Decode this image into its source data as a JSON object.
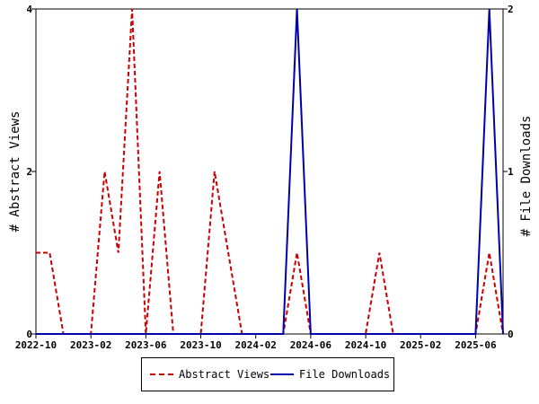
{
  "chart_data": {
    "type": "line",
    "categories": [
      "2022-10",
      "2022-11",
      "2022-12",
      "2023-01",
      "2023-02",
      "2023-03",
      "2023-04",
      "2023-05",
      "2023-06",
      "2023-07",
      "2023-08",
      "2023-09",
      "2023-10",
      "2023-11",
      "2023-12",
      "2024-01",
      "2024-02",
      "2024-03",
      "2024-04",
      "2024-05",
      "2024-06",
      "2024-07",
      "2024-08",
      "2024-09",
      "2024-10",
      "2024-11",
      "2024-12",
      "2025-01",
      "2025-02",
      "2025-03",
      "2025-04",
      "2025-05",
      "2025-06",
      "2025-07",
      "2025-08"
    ],
    "x_tick_labels": [
      "2022-10",
      "2023-02",
      "2023-06",
      "2023-10",
      "2024-02",
      "2024-06",
      "2024-10",
      "2025-02",
      "2025-06"
    ],
    "series": [
      {
        "name": "Abstract Views",
        "axis": "left",
        "color": "#cc0000",
        "dash": "dashed",
        "values": [
          1,
          1,
          0,
          0,
          0,
          2,
          1,
          4,
          0,
          2,
          0,
          0,
          0,
          2,
          1,
          0,
          0,
          0,
          0,
          1,
          0,
          0,
          0,
          0,
          0,
          1,
          0,
          0,
          0,
          0,
          0,
          0,
          0,
          1,
          0
        ]
      },
      {
        "name": "File Downloads",
        "axis": "right",
        "color": "#0000aa",
        "dash": "solid",
        "values": [
          0,
          0,
          0,
          0,
          0,
          0,
          0,
          0,
          0,
          0,
          0,
          0,
          0,
          0,
          0,
          0,
          0,
          0,
          0,
          2,
          0,
          0,
          0,
          0,
          0,
          0,
          0,
          0,
          0,
          0,
          0,
          0,
          0,
          2,
          0
        ]
      }
    ],
    "ylabel_left": "# Abstract Views",
    "ylabel_right": "# File Downloads",
    "ylim_left": [
      0,
      4
    ],
    "ylim_right": [
      0,
      2
    ],
    "yticks_left": [
      "0",
      "2",
      "4"
    ],
    "yticks_right": [
      "0",
      "1",
      "2"
    ],
    "grid": false,
    "legend_position": "bottom"
  },
  "legend": {
    "abstract_views": "Abstract Views",
    "file_downloads": "File Downloads"
  }
}
